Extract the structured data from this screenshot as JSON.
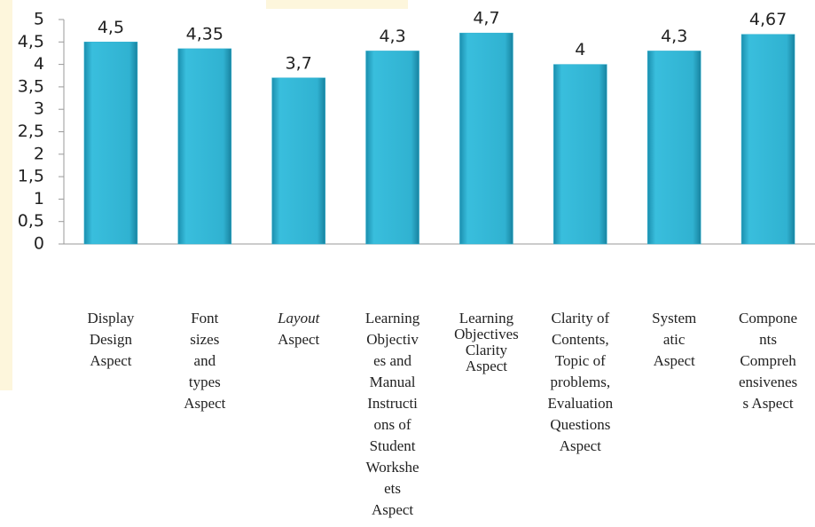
{
  "chart_data": {
    "type": "bar",
    "categories": [
      [
        "Display",
        "Design",
        "Aspect"
      ],
      [
        "Font",
        "sizes",
        "and",
        "types",
        "Aspect"
      ],
      [
        "Layout",
        "Aspect"
      ],
      [
        "Learning",
        "Objectiv",
        "es and",
        "Manual",
        "Instructi",
        "ons of",
        "Student",
        "Workshe",
        "ets",
        "Aspect"
      ],
      [
        "Learning",
        "Objectives",
        "Clarity",
        "Aspect"
      ],
      [
        "Clarity of",
        "Contents,",
        "Topic of",
        "problems,",
        "Evaluation",
        "Questions",
        "Aspect"
      ],
      [
        "System",
        "atic",
        "Aspect"
      ],
      [
        "Compone",
        "nts",
        "Compreh",
        "ensivenes",
        "s Aspect"
      ]
    ],
    "values": [
      4.5,
      4.35,
      3.7,
      4.3,
      4.7,
      4,
      4.3,
      4.67
    ],
    "value_labels": [
      "4,5",
      "4,35",
      "3,7",
      "4,3",
      "4,7",
      "4",
      "4,3",
      "4,67"
    ],
    "color": "#2fb0cf",
    "ylim": [
      0,
      5
    ],
    "yticks": [
      0,
      {
        "value": 0.5,
        "label": "0,5"
      },
      1,
      {
        "value": 1.5,
        "label": "1,5"
      },
      2,
      {
        "value": 2.5,
        "label": "2,5"
      },
      3,
      {
        "value": 3.5,
        "label": "3,5"
      },
      4,
      {
        "value": 4.5,
        "label": "4,5"
      },
      5
    ]
  }
}
